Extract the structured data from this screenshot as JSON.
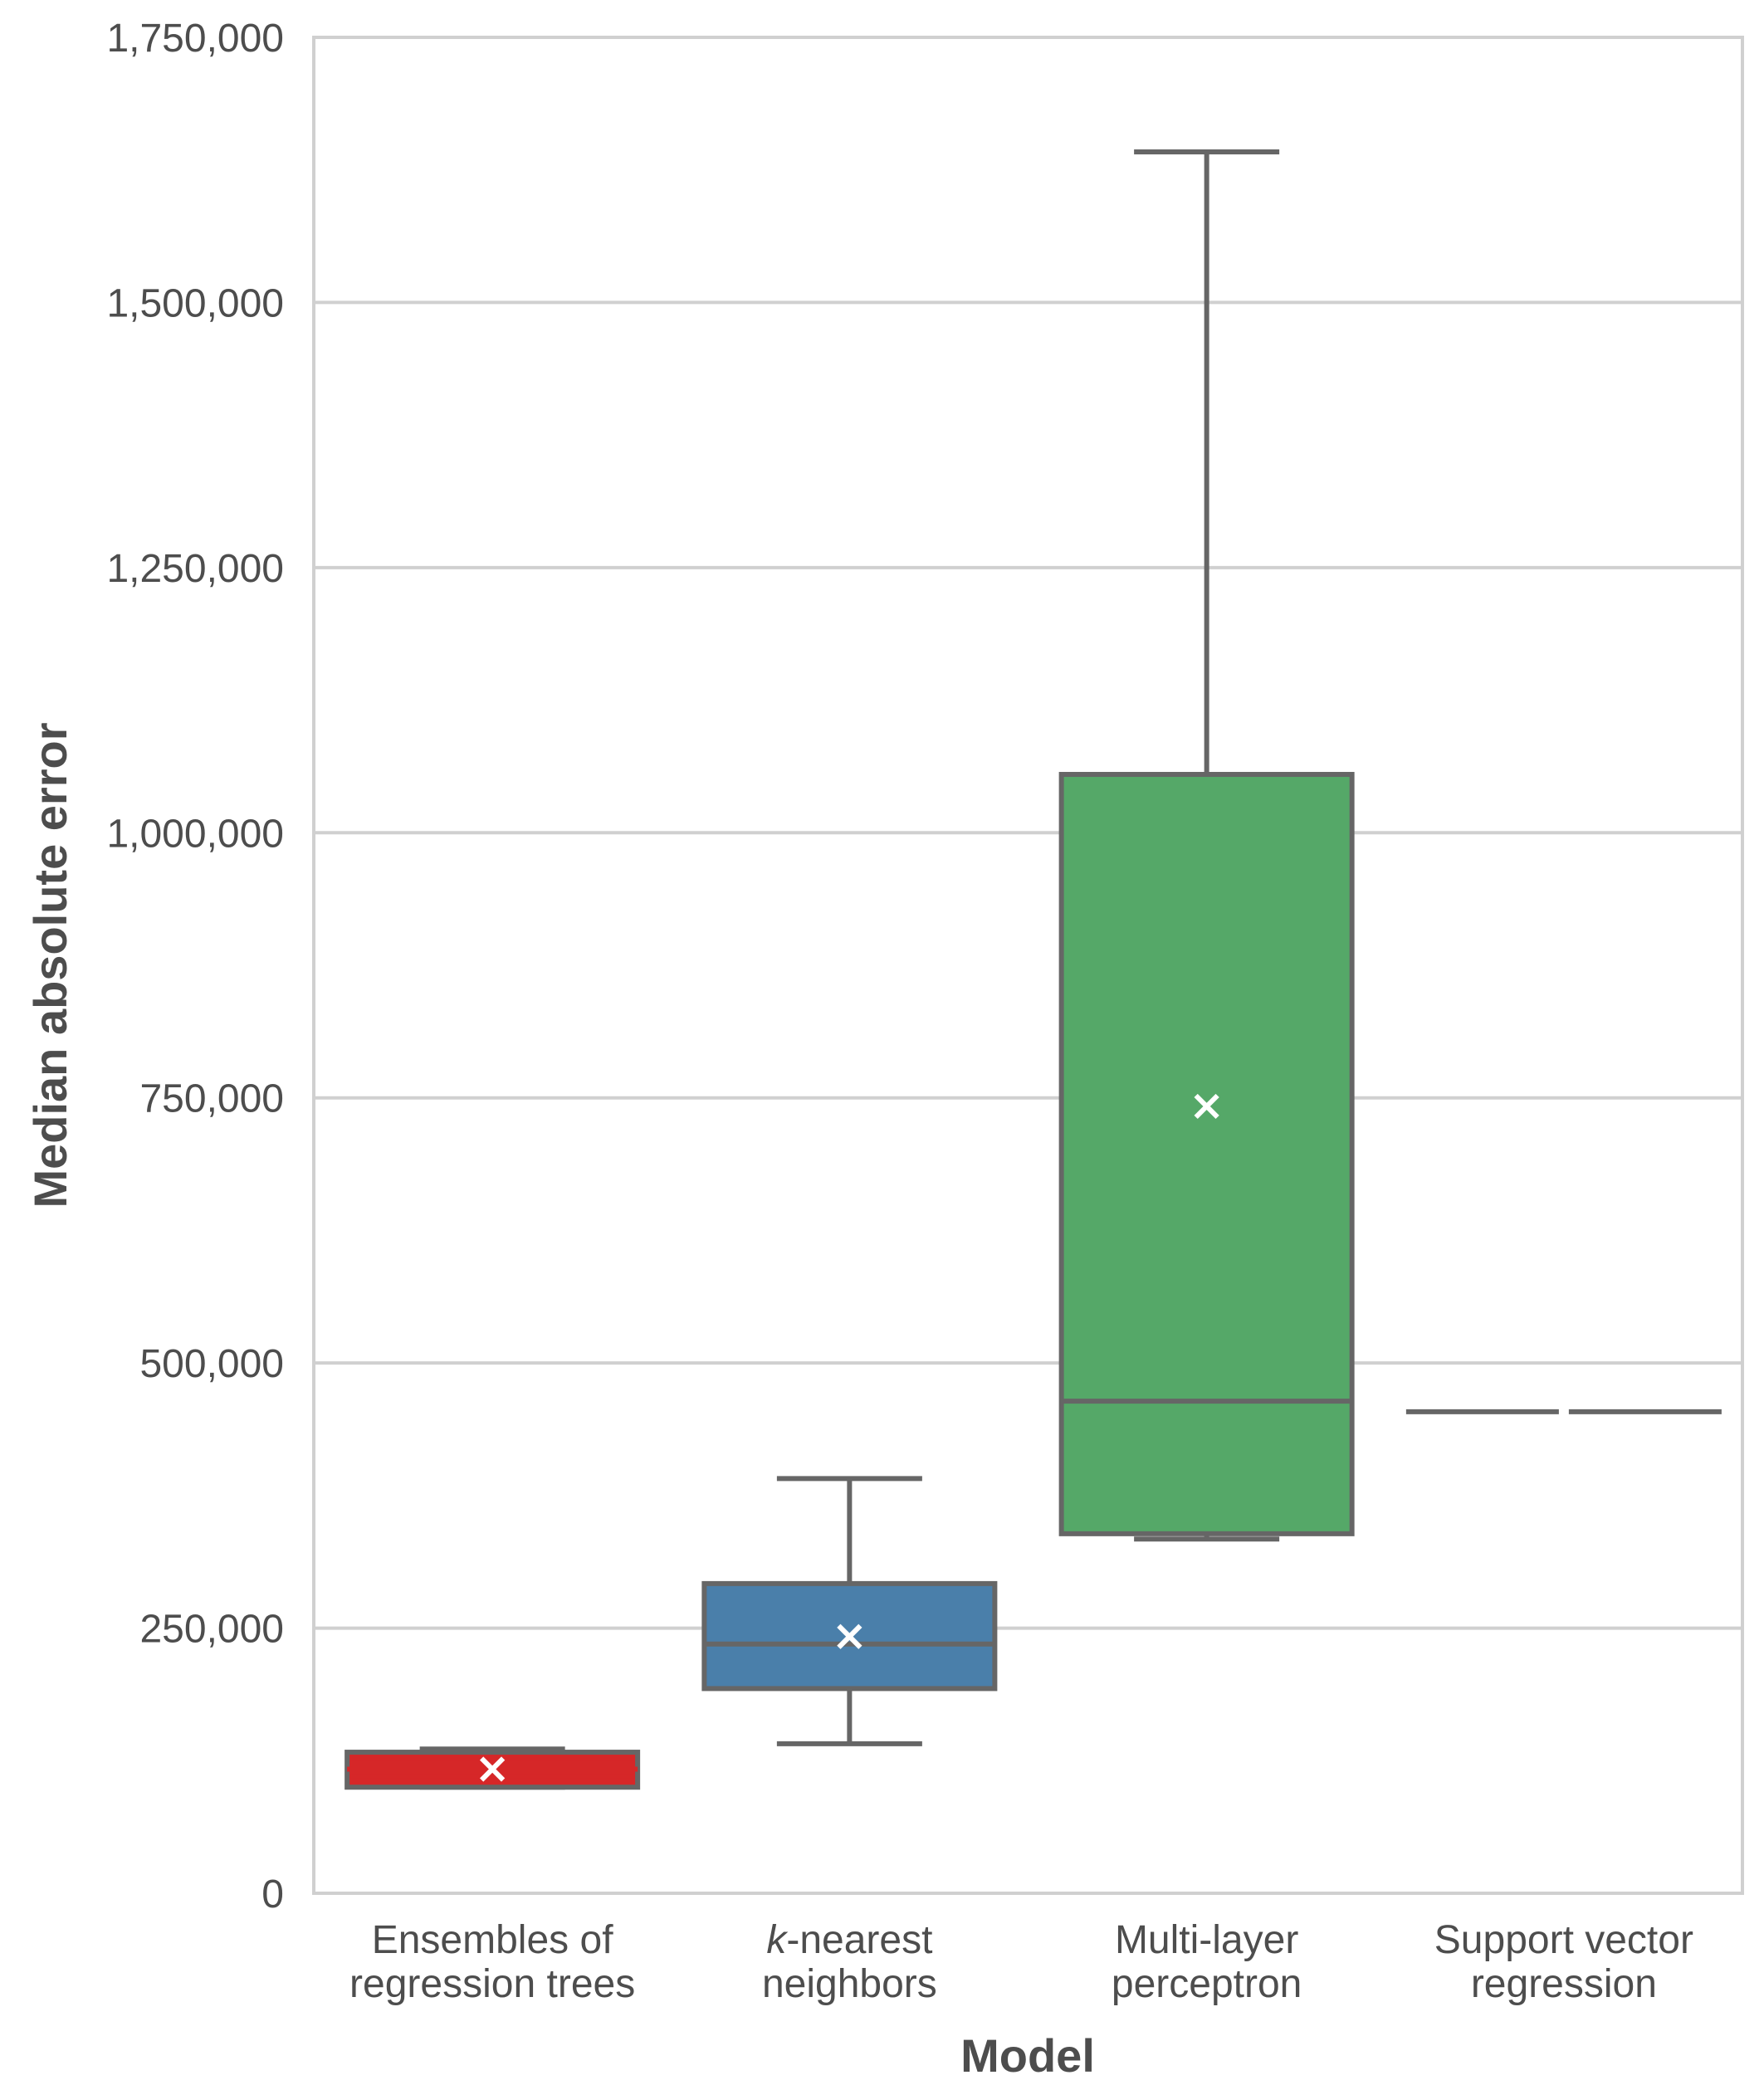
{
  "chart_data": {
    "type": "box",
    "xlabel": "Model",
    "ylabel": "Median absolute error",
    "ylim": [
      0,
      1750000
    ],
    "yticks": [
      0,
      250000,
      500000,
      750000,
      1000000,
      1250000,
      1500000,
      1750000
    ],
    "ytick_labels": [
      "0",
      "250,000",
      "500,000",
      "750,000",
      "1,000,000",
      "1,250,000",
      "1,500,000",
      "1,750,000"
    ],
    "grid": "horizontal",
    "categories": [
      {
        "line1": "Ensembles of",
        "line2": "regression trees",
        "line1_prefix": ""
      },
      {
        "line1": "-nearest",
        "line2": "neighbors",
        "line1_prefix": "k"
      },
      {
        "line1": "Multi-layer",
        "line2": "perceptron",
        "line1_prefix": ""
      },
      {
        "line1": "Support vector",
        "line2": "regression",
        "line1_prefix": ""
      }
    ],
    "boxes": [
      {
        "whisker_low": 100000,
        "q1": 100000,
        "median": 117000,
        "q3": 133000,
        "whisker_high": 136000,
        "mean": 117000,
        "color": "#d62728",
        "median_color": "#d62728"
      },
      {
        "whisker_low": 141000,
        "q1": 193000,
        "median": 235000,
        "q3": 292000,
        "whisker_high": 391000,
        "mean": 242000,
        "color": "#4a7faa",
        "median_color": "#666666"
      },
      {
        "whisker_low": 334000,
        "q1": 339000,
        "median": 464000,
        "q3": 1055000,
        "whisker_high": 1642000,
        "mean": 742000,
        "color": "#55a868",
        "median_color": "#666666"
      },
      {
        "whisker_low": 454000,
        "q1": 454000,
        "median": 454000,
        "q3": 454000,
        "whisker_high": 454000,
        "mean": null,
        "color": "#ffffff",
        "median_color": "#666666"
      }
    ],
    "line_color": "#666666",
    "grid_color": "#d0d0d0",
    "mean_marker_color": "#ffffff"
  }
}
